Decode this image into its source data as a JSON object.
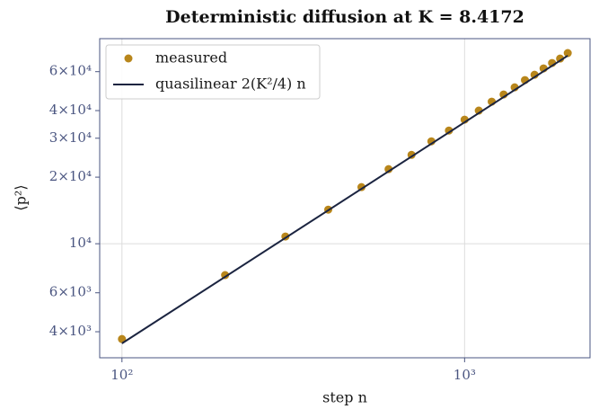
{
  "chart_data": {
    "type": "scatter",
    "title": "Deterministic diffusion at K = 8.4172",
    "x_label": "step n",
    "y_label": "⟨p²⟩",
    "xscale": "log",
    "yscale": "log",
    "grid": true,
    "legend": "upper left",
    "xlim": [
      86.1,
      2323
    ],
    "ylim": [
      3050,
      84600
    ],
    "xticks": [
      {
        "value": 100,
        "label": "10²"
      },
      {
        "value": 1000,
        "label": "10³"
      }
    ],
    "yticks": [
      {
        "value": 4000,
        "label": "4×10³"
      },
      {
        "value": 6000,
        "label": "6×10³"
      },
      {
        "value": 10000,
        "label": "10⁴"
      },
      {
        "value": 20000,
        "label": "2×10⁴"
      },
      {
        "value": 30000,
        "label": "3×10⁴"
      },
      {
        "value": 40000,
        "label": "4×10⁴"
      },
      {
        "value": 60000,
        "label": "6×10⁴"
      }
    ],
    "series": [
      {
        "name": "measured",
        "kind": "scatter",
        "color": "#b8861b",
        "x": [
          100,
          200,
          300,
          400,
          500,
          600,
          700,
          800,
          900,
          1000,
          1100,
          1200,
          1300,
          1400,
          1500,
          1600,
          1700,
          1800,
          1900,
          2000
        ],
        "values": [
          3706,
          7213,
          10780,
          14260,
          18030,
          21740,
          25230,
          29040,
          32500,
          36400,
          40000,
          43900,
          47300,
          50950,
          54950,
          58100,
          62050,
          65650,
          68750,
          72800
        ]
      },
      {
        "name": "quasilinear 2(K²/4) n",
        "kind": "line",
        "color": "#1b2440",
        "x": [
          100,
          2000
        ],
        "values": [
          3542,
          70849
        ]
      }
    ]
  }
}
